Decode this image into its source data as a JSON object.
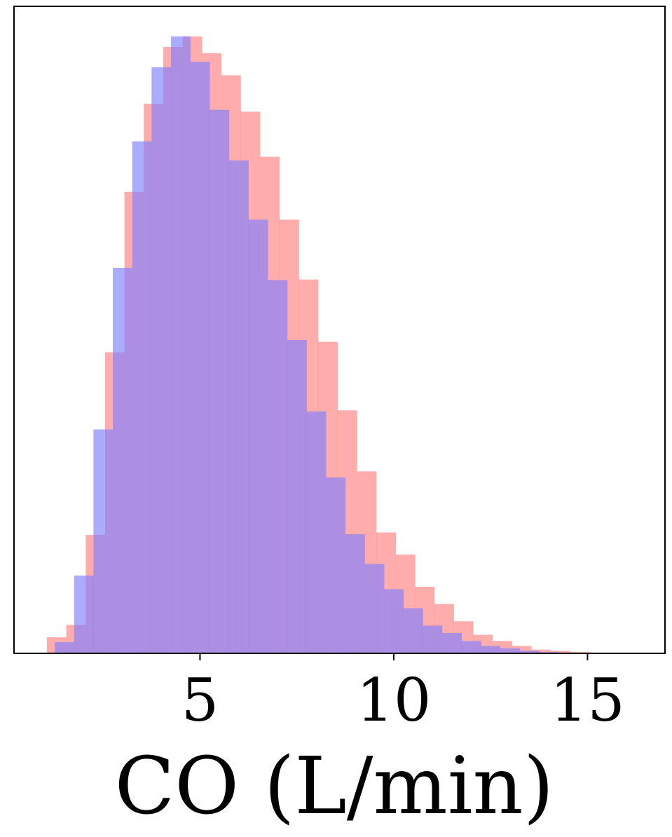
{
  "chart_data": {
    "type": "histogram",
    "xlabel": "CO (L/min)",
    "ylabel": "",
    "xlim": [
      0.2,
      17.0
    ],
    "ylim": [
      0,
      1.0
    ],
    "xticks": [
      5,
      10,
      15
    ],
    "grid": false,
    "yticks_visible": false,
    "series": [
      {
        "color": "#ff7f7f",
        "opacity": 0.65,
        "bin_start": 1.05,
        "bin_width": 0.5,
        "values": [
          0.026,
          0.046,
          0.192,
          0.488,
          0.748,
          0.891,
          0.983,
          1.0,
          0.973,
          0.937,
          0.878,
          0.805,
          0.703,
          0.606,
          0.505,
          0.394,
          0.295,
          0.196,
          0.16,
          0.108,
          0.08,
          0.052,
          0.03,
          0.02,
          0.012,
          0.006,
          0.004,
          0.002,
          0.001
        ]
      },
      {
        "color": "#7f7fff",
        "opacity": 0.65,
        "bin_start": 1.25,
        "bin_width": 0.5,
        "values": [
          0.018,
          0.126,
          0.363,
          0.625,
          0.83,
          0.95,
          1.0,
          0.959,
          0.881,
          0.799,
          0.703,
          0.605,
          0.508,
          0.392,
          0.285,
          0.193,
          0.145,
          0.104,
          0.073,
          0.045,
          0.033,
          0.02,
          0.012,
          0.008,
          0.004,
          0.002
        ]
      }
    ]
  }
}
